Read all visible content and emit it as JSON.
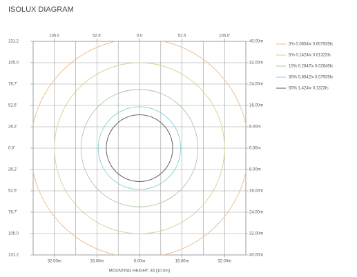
{
  "chart_data": {
    "type": "isolux",
    "title": "ISOLUX DIAGRAM",
    "xlabel": "MOUNTING HEIGHT: 33 (10.0m)",
    "xlim": [
      -40,
      40
    ],
    "ylim": [
      -40,
      40
    ],
    "xticks": [
      {
        "value": -32,
        "label": "32.00m"
      },
      {
        "value": -16,
        "label": "16.00m"
      },
      {
        "value": 0,
        "label": "0.00m"
      },
      {
        "value": 16,
        "label": "16.00m"
      },
      {
        "value": 32,
        "label": "32.00m"
      }
    ],
    "x2lim": [
      -131.2,
      131.2
    ],
    "x2ticks": [
      {
        "value": -105,
        "label": "105.0"
      },
      {
        "value": -52.5,
        "label": "52.5'"
      },
      {
        "value": 0,
        "label": "0.0"
      },
      {
        "value": 52.5,
        "label": "52.5"
      },
      {
        "value": 105,
        "label": "105.0'"
      }
    ],
    "yticks": [
      {
        "value": 40,
        "label": "40.00m"
      },
      {
        "value": 32,
        "label": "32.00m"
      },
      {
        "value": 24,
        "label": "24.00m"
      },
      {
        "value": 16,
        "label": "16.00m"
      },
      {
        "value": 8,
        "label": "8.00m"
      },
      {
        "value": 0,
        "label": "0.00m"
      },
      {
        "value": -8,
        "label": "8.00m"
      },
      {
        "value": -16,
        "label": "16.00m"
      },
      {
        "value": -24,
        "label": "24.00m"
      },
      {
        "value": -32,
        "label": "32.00m"
      },
      {
        "value": -40,
        "label": "40.00m"
      }
    ],
    "y2lim": [
      -131.2,
      131.2
    ],
    "y2ticks": [
      {
        "value": 131.2,
        "label": "131.2"
      },
      {
        "value": 105,
        "label": "105.0"
      },
      {
        "value": 78.7,
        "label": "78.7'"
      },
      {
        "value": 52.5,
        "label": "52.5'"
      },
      {
        "value": 26.2,
        "label": "26.2'"
      },
      {
        "value": 0,
        "label": "0.0'"
      },
      {
        "value": -26.2,
        "label": "26.2'"
      },
      {
        "value": -52.5,
        "label": "52.5'"
      },
      {
        "value": -78.7,
        "label": "78.7'"
      },
      {
        "value": -105,
        "label": "105.0"
      },
      {
        "value": -131.2,
        "label": "131.2"
      }
    ],
    "grid": true,
    "series": [
      {
        "name": "3% 0.0854lx 0.007935fc",
        "color": "#e8b98a",
        "radius": 41
      },
      {
        "name": "5% 0.1424lx 0.01323fc",
        "color": "#d6d08c",
        "radius": 32
      },
      {
        "name": "10% 0.2847lx 0.02645fc",
        "color": "#a8c8a0",
        "radius": 22
      },
      {
        "name": "30% 0.8542lx 0.07935fc",
        "color": "#7fd0d8",
        "radius": 15.5
      },
      {
        "name": "50% 1.424lx 0.1323fc",
        "color": "#555555",
        "radius": 12.5
      }
    ]
  }
}
